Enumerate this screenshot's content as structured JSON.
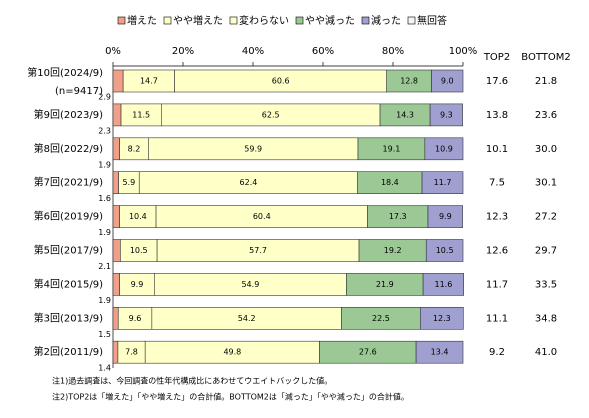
{
  "chart_data": {
    "type": "stacked-barh",
    "categories": [
      "第10回(2024/9)",
      "第9回(2023/9)",
      "第8回(2022/9)",
      "第7回(2021/9)",
      "第6回(2019/9)",
      "第5回(2017/9)",
      "第4回(2015/9)",
      "第3回(2013/9)",
      "第2回(2011/9)"
    ],
    "category_note": "(n=9417)",
    "series": [
      {
        "name": "増えた",
        "color": "#f0a088",
        "values": [
          2.9,
          2.3,
          1.9,
          1.6,
          1.9,
          2.1,
          1.9,
          1.5,
          1.4
        ]
      },
      {
        "name": "やや増えた",
        "color": "#ffffc8",
        "values": [
          14.7,
          11.5,
          8.2,
          5.9,
          10.4,
          10.5,
          9.9,
          9.6,
          7.8
        ]
      },
      {
        "name": "変わらない",
        "color": "#ffffc8",
        "values": [
          60.6,
          62.5,
          59.9,
          62.4,
          60.4,
          57.7,
          54.9,
          54.2,
          49.8
        ]
      },
      {
        "name": "やや減った",
        "color": "#9cc896",
        "values": [
          12.8,
          14.3,
          19.1,
          18.4,
          17.3,
          19.2,
          21.9,
          22.5,
          27.6
        ]
      },
      {
        "name": "減った",
        "color": "#a0a0d0",
        "values": [
          9.0,
          9.3,
          10.9,
          11.7,
          9.9,
          10.5,
          11.6,
          12.3,
          13.4
        ],
        "value_labels": [
          "9.0",
          "9.3",
          "10.9",
          "11.7",
          "9.9",
          "10.5",
          "11.6",
          "12.3",
          "13.4"
        ]
      },
      {
        "name": "無回答",
        "color": "#f4f4f4",
        "values": [
          0,
          0,
          0,
          0,
          0,
          0,
          0,
          0,
          0
        ]
      }
    ],
    "xlim": [
      0,
      100
    ],
    "xticks": [
      {
        "value": 0,
        "label": "0%"
      },
      {
        "value": 20,
        "label": "20%"
      },
      {
        "value": 40,
        "label": "40%"
      },
      {
        "value": 60,
        "label": "60%"
      },
      {
        "value": 80,
        "label": "80%"
      },
      {
        "value": 100,
        "label": "100%"
      }
    ],
    "summary": {
      "columns": [
        "TOP2",
        "BOTTOM2"
      ],
      "rows": [
        [
          "17.6",
          "21.8"
        ],
        [
          "13.8",
          "23.6"
        ],
        [
          "10.1",
          "30.0"
        ],
        [
          "7.5",
          "30.1"
        ],
        [
          "12.3",
          "27.2"
        ],
        [
          "12.6",
          "29.7"
        ],
        [
          "11.7",
          "33.5"
        ],
        [
          "11.1",
          "34.8"
        ],
        [
          "9.2",
          "41.0"
        ]
      ]
    },
    "notes": [
      "注1)過去調査は、今回調査の性年代構成比にあわせてウエイトバックした値。",
      "注2)TOP2は「増えた」「やや増えた」の合計値。BOTTOM2は「減った」「やや減った」の合計値。"
    ]
  }
}
